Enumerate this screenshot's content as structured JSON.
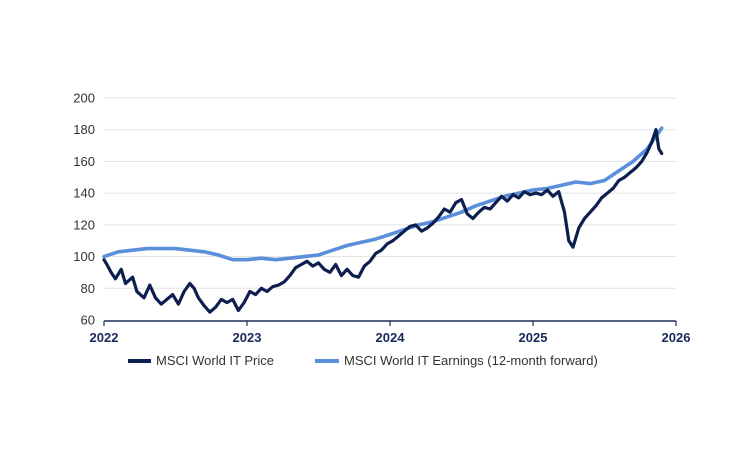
{
  "chart_data": {
    "type": "line",
    "title": "",
    "xlabel": "",
    "ylabel": "",
    "xlim": [
      2022.0,
      2026.0
    ],
    "ylim": [
      60,
      200
    ],
    "y_ticks": [
      60,
      80,
      100,
      120,
      140,
      160,
      180,
      200
    ],
    "y_tick_labels": [
      "60",
      "80",
      "100",
      "120",
      "140",
      "160",
      "180",
      "200"
    ],
    "x_ticks": [
      2022,
      2023,
      2024,
      2025,
      2026
    ],
    "x_tick_labels": [
      "2022",
      "2023",
      "2024",
      "2025",
      "2026"
    ],
    "grid": "horizontal",
    "legend_position": "bottom",
    "series": [
      {
        "name": "MSCI World IT Price",
        "color": "#0d1f4f",
        "x": [
          2022.0,
          2022.02,
          2022.05,
          2022.08,
          2022.12,
          2022.15,
          2022.2,
          2022.23,
          2022.28,
          2022.32,
          2022.36,
          2022.4,
          2022.44,
          2022.48,
          2022.52,
          2022.56,
          2022.6,
          2022.63,
          2022.66,
          2022.7,
          2022.74,
          2022.78,
          2022.82,
          2022.86,
          2022.9,
          2022.94,
          2022.98,
          2023.02,
          2023.06,
          2023.1,
          2023.14,
          2023.18,
          2023.22,
          2023.26,
          2023.3,
          2023.34,
          2023.38,
          2023.42,
          2023.46,
          2023.5,
          2023.54,
          2023.58,
          2023.62,
          2023.66,
          2023.7,
          2023.74,
          2023.78,
          2023.82,
          2023.86,
          2023.9,
          2023.94,
          2023.98,
          2024.02,
          2024.06,
          2024.1,
          2024.14,
          2024.18,
          2024.22,
          2024.26,
          2024.3,
          2024.34,
          2024.38,
          2024.42,
          2024.46,
          2024.5,
          2024.54,
          2024.58,
          2024.62,
          2024.66,
          2024.7,
          2024.74,
          2024.78,
          2024.82,
          2024.86,
          2024.9,
          2024.94,
          2024.98,
          2025.02,
          2025.06,
          2025.1,
          2025.14,
          2025.18,
          2025.22,
          2025.25,
          2025.28,
          2025.32,
          2025.36,
          2025.4,
          2025.44,
          2025.48,
          2025.52,
          2025.56,
          2025.6,
          2025.64,
          2025.68,
          2025.72,
          2025.76,
          2025.8,
          2025.83,
          2025.86,
          2025.88,
          2025.9
        ],
        "values": [
          98,
          95,
          90,
          86,
          92,
          83,
          87,
          78,
          74,
          82,
          74,
          70,
          73,
          76,
          70,
          78,
          83,
          80,
          74,
          69,
          65,
          68,
          73,
          71,
          73,
          66,
          71,
          78,
          76,
          80,
          78,
          81,
          82,
          84,
          88,
          93,
          95,
          97,
          94,
          96,
          92,
          90,
          95,
          88,
          92,
          88,
          87,
          94,
          97,
          102,
          104,
          108,
          110,
          113,
          116,
          119,
          120,
          116,
          118,
          121,
          125,
          130,
          128,
          134,
          136,
          127,
          124,
          128,
          131,
          130,
          134,
          138,
          135,
          139,
          137,
          141,
          139,
          140,
          139,
          142,
          138,
          141,
          128,
          110,
          106,
          118,
          124,
          128,
          132,
          137,
          140,
          143,
          148,
          150,
          153,
          156,
          160,
          166,
          172,
          180,
          168,
          165
        ]
      },
      {
        "name": "MSCI World IT Earnings (12-month forward)",
        "color": "#5b8fdc",
        "x": [
          2022.0,
          2022.1,
          2022.2,
          2022.3,
          2022.4,
          2022.5,
          2022.6,
          2022.7,
          2022.8,
          2022.9,
          2023.0,
          2023.1,
          2023.2,
          2023.3,
          2023.4,
          2023.5,
          2023.6,
          2023.7,
          2023.8,
          2023.9,
          2024.0,
          2024.1,
          2024.2,
          2024.3,
          2024.4,
          2024.5,
          2024.6,
          2024.7,
          2024.8,
          2024.9,
          2025.0,
          2025.1,
          2025.2,
          2025.3,
          2025.4,
          2025.5,
          2025.6,
          2025.7,
          2025.8,
          2025.9
        ],
        "values": [
          100,
          103,
          104,
          105,
          105,
          105,
          104,
          103,
          101,
          98,
          98,
          99,
          98,
          99,
          100,
          101,
          104,
          107,
          109,
          111,
          114,
          117,
          120,
          122,
          125,
          128,
          132,
          135,
          138,
          140,
          142,
          143,
          145,
          147,
          146,
          148,
          154,
          160,
          168,
          181
        ]
      }
    ]
  }
}
